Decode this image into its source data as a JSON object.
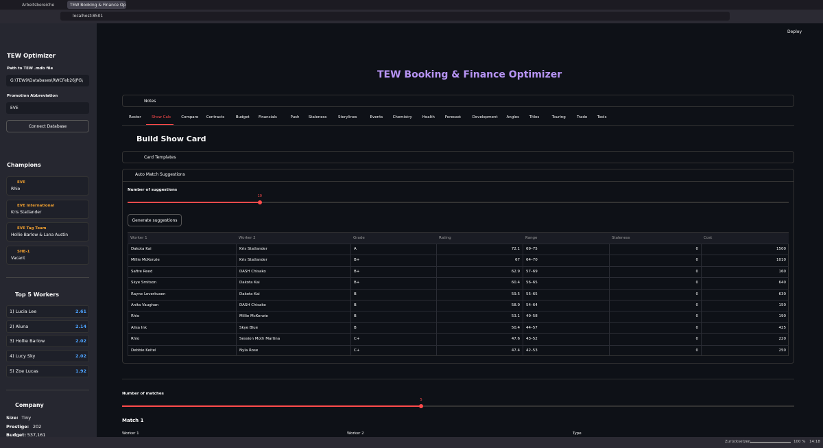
{
  "browser": {
    "tabs": [
      "Arbeitsbereiche",
      "TEW Booking & Finance Op"
    ],
    "url": "localhost:8501"
  },
  "toolbar": {
    "deploy": "Deploy"
  },
  "sidebar": {
    "title": "TEW Optimizer",
    "path_label": "Path to TEW .mdb file",
    "path_value": "G:\\TEW9\\Databases\\RWCFeb26JPG\\",
    "abbr_label": "Promotion Abbreviation",
    "abbr_value": "EVE",
    "connect": "Connect Database",
    "champions_title": "Champions",
    "champions": [
      {
        "title": "EVE",
        "holder": "Rhio"
      },
      {
        "title": "EVE International",
        "holder": "Kris Statlander"
      },
      {
        "title": "EVE Tag Team",
        "holder": "Hollie Barlow & Lana Austin"
      },
      {
        "title": "SHE-1",
        "holder": "Vacant"
      }
    ],
    "top_title": "Top 5 Workers",
    "top": [
      {
        "name": "1) Lucia Lee",
        "score": 2.61
      },
      {
        "name": "2) Aluna",
        "score": 2.14
      },
      {
        "name": "3) Hollie Barlow",
        "score": 2.02
      },
      {
        "name": "4) Lucy Sky",
        "score": 2.02
      },
      {
        "name": "5) Zoe Lucas",
        "score": 1.92
      }
    ],
    "company_title": "Company",
    "company": [
      {
        "label": "Size:",
        "value": "Tiny"
      },
      {
        "label": "Prestige:",
        "value": 202
      },
      {
        "label": "Budget:",
        "value": "537,161"
      }
    ]
  },
  "main": {
    "title": "TEW Booking & Finance Optimizer",
    "notes": "Notes",
    "tabs": [
      "Roster",
      "Show Calc",
      "Compare",
      "Contracts",
      "Budget",
      "Financials",
      "Push",
      "Staleness",
      "Storylines",
      "Events",
      "Chemistry",
      "Health",
      "Forecast",
      "Development",
      "Angles",
      "Titles",
      "Touring",
      "Trade",
      "Tools"
    ],
    "heading": "Build Show Card",
    "card_templates": "Card Templates",
    "auto_match": "Auto Match Suggestions",
    "suggestions_label": "Number of suggestions",
    "suggestions_value": 10,
    "generate": "Generate suggestions",
    "table": {
      "columns": [
        "Worker 1",
        "Worker 2",
        "Grade",
        "Rating",
        "Range",
        "Staleness",
        "Cost"
      ],
      "rows": [
        [
          "Dakota Kai",
          "Kris Statlander",
          "A",
          72.1,
          "69–75",
          0,
          1500
        ],
        [
          "Millie McKenzie",
          "Kris Statlander",
          "B+",
          67,
          "64–70",
          0,
          1010
        ],
        [
          "Safire Reed",
          "DASH Chisako",
          "B+",
          62.9,
          "57–69",
          0,
          160
        ],
        [
          "Skye Smitson",
          "Dakota Kai",
          "B+",
          60.4,
          "56–65",
          0,
          640
        ],
        [
          "Rayne Leverkusen",
          "Dakota Kai",
          "B",
          59.5,
          "55–65",
          0,
          630
        ],
        [
          "Anita Vaughan",
          "DASH Chisako",
          "B",
          58.9,
          "54–64",
          0,
          150
        ],
        [
          "Rhio",
          "Millie McKenzie",
          "B",
          53.1,
          "49–58",
          0,
          190
        ],
        [
          "Alisa Ink",
          "Skye Blue",
          "B",
          50.4,
          "44–57",
          0,
          425
        ],
        [
          "Rhio",
          "Session Moth Martina",
          "C+",
          47.6,
          "43–52",
          0,
          220
        ],
        [
          "Debbie Keitel",
          "Nyla Rose",
          "C+",
          47.4,
          "42–53",
          0,
          250
        ]
      ]
    },
    "matches_label": "Number of matches",
    "matches_value": 5,
    "match_title": "Match 1",
    "match_fields": [
      "Worker 1",
      "Worker 2",
      "Type"
    ]
  },
  "statusbar": {
    "reset": "Zurücksetzen",
    "zoom": "100 %",
    "time": "14:18"
  }
}
